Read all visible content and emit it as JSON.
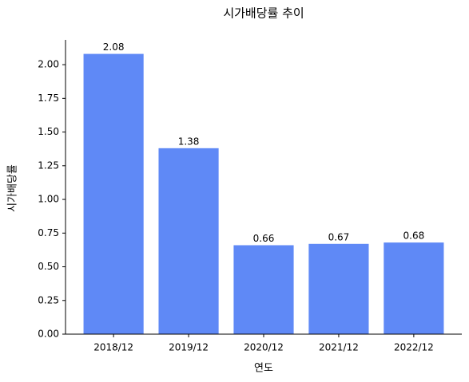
{
  "chart_data": {
    "type": "bar",
    "title": "시가배당률 추이",
    "x_label": "연도",
    "y_label": "시가배당률",
    "categories": [
      "2018/12",
      "2019/12",
      "2020/12",
      "2021/12",
      "2022/12"
    ],
    "values": [
      2.08,
      1.38,
      0.66,
      0.67,
      0.68
    ],
    "color": "#5f89f6",
    "ylim": [
      0,
      2.184
    ],
    "yticks": [
      {
        "value": 0,
        "label": "0.00"
      },
      {
        "value": 0.25,
        "label": "0.25"
      },
      {
        "value": 0.5,
        "label": "0.50"
      },
      {
        "value": 0.75,
        "label": "0.75"
      },
      {
        "value": 1,
        "label": "1.00"
      },
      {
        "value": 1.25,
        "label": "1.25"
      },
      {
        "value": 1.5,
        "label": "1.50"
      },
      {
        "value": 1.75,
        "label": "1.75"
      },
      {
        "value": 2,
        "label": "2.00"
      }
    ],
    "grid": false
  }
}
